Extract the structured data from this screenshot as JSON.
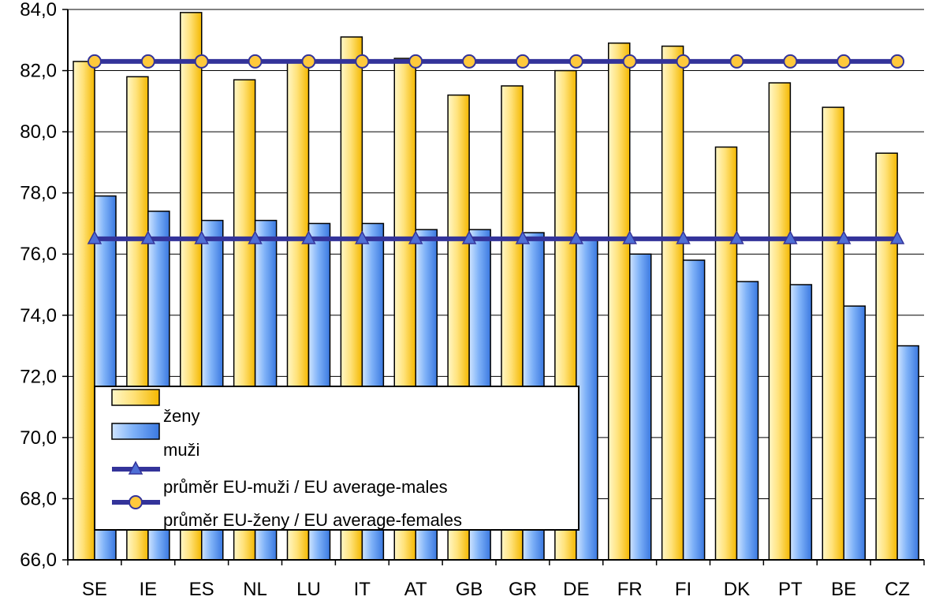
{
  "chart_data": {
    "type": "bar",
    "categories": [
      "SE",
      "IE",
      "ES",
      "NL",
      "LU",
      "IT",
      "AT",
      "GB",
      "GR",
      "DE",
      "FR",
      "FI",
      "DK",
      "PT",
      "BE",
      "CZ"
    ],
    "series": [
      {
        "name": "ženy",
        "kind": "bar",
        "color": "#FFD54A",
        "values": [
          82.3,
          81.8,
          83.9,
          81.7,
          82.3,
          83.1,
          82.4,
          81.2,
          81.5,
          82.0,
          82.9,
          82.8,
          79.5,
          81.6,
          80.8,
          79.3
        ]
      },
      {
        "name": "muži",
        "kind": "bar",
        "color": "#5B9BF0",
        "values": [
          77.9,
          77.4,
          77.1,
          77.1,
          77.0,
          77.0,
          76.8,
          76.8,
          76.7,
          76.5,
          76.0,
          75.8,
          75.1,
          75.0,
          74.3,
          73.0
        ]
      },
      {
        "name": "průměr EU-muži / EU average-males",
        "kind": "line",
        "marker": "triangle",
        "color": "#33339A",
        "values": [
          76.5,
          76.5,
          76.5,
          76.5,
          76.5,
          76.5,
          76.5,
          76.5,
          76.5,
          76.5,
          76.5,
          76.5,
          76.5,
          76.5,
          76.5,
          76.5
        ]
      },
      {
        "name": "průměr EU-ženy / EU average-females",
        "kind": "line",
        "marker": "circle",
        "color": "#33339A",
        "values": [
          82.3,
          82.3,
          82.3,
          82.3,
          82.3,
          82.3,
          82.3,
          82.3,
          82.3,
          82.3,
          82.3,
          82.3,
          82.3,
          82.3,
          82.3,
          82.3
        ]
      }
    ],
    "ylim": [
      66,
      84
    ],
    "yticks": [
      "66,0",
      "68,0",
      "70,0",
      "72,0",
      "74,0",
      "76,0",
      "78,0",
      "80,0",
      "82,0",
      "84,0"
    ],
    "grid": true,
    "legend": "bottom-left"
  }
}
